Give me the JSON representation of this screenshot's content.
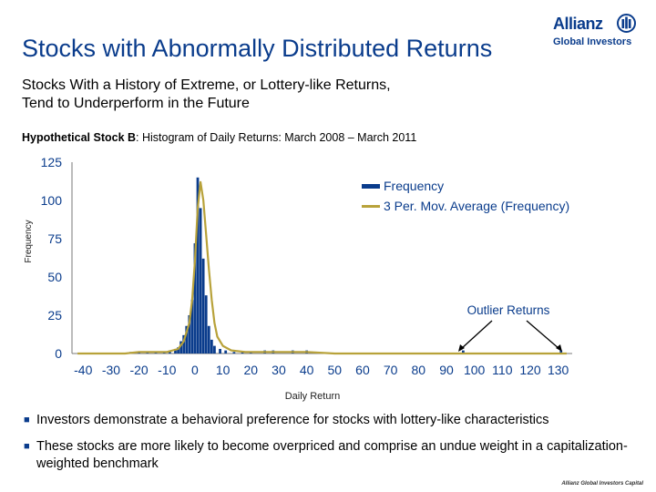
{
  "slide": {
    "title": "Stocks with Abnormally Distributed Returns",
    "subtitle_lines": [
      "Stocks With a History of Extreme, or Lottery-like Returns,",
      "Tend to Underperform in the Future"
    ],
    "chart_label_bold": "Hypothetical Stock B",
    "chart_label_rest": ": Histogram of Daily Returns: March 2008 – March 2011",
    "bullets": [
      "Investors demonstrate a behavioral preference for stocks with lottery-like characteristics",
      "These stocks are more likely to become overpriced and comprise an undue weight in a capitalization-weighted benchmark"
    ],
    "footer": "Allianz Global Investors Capital"
  },
  "logo": {
    "name": "Allianz",
    "sub": "Global Investors",
    "icon": "allianz-eagle-icon"
  },
  "colors": {
    "title": "#0a3c8c",
    "bars": "#0a3c8c",
    "line": "#b8a23a"
  },
  "chart_data": {
    "type": "bar",
    "title": "",
    "xlabel": "Daily Return",
    "ylabel": "Frequency",
    "xlim": [
      -44,
      135
    ],
    "ylim": [
      0,
      125
    ],
    "yticks": [
      0,
      25,
      50,
      75,
      100,
      125
    ],
    "xticks": [
      -40,
      -30,
      -20,
      -10,
      0,
      10,
      20,
      30,
      40,
      50,
      60,
      70,
      80,
      90,
      100,
      110,
      120,
      130
    ],
    "legend": [
      "Frequency",
      "3 Per. Mov. Average (Frequency)"
    ],
    "annotation": "Outlier Returns",
    "bars": [
      {
        "x": -23,
        "y": 1
      },
      {
        "x": -20,
        "y": 1
      },
      {
        "x": -17,
        "y": 1
      },
      {
        "x": -14,
        "y": 1
      },
      {
        "x": -11,
        "y": 1
      },
      {
        "x": -9,
        "y": 2
      },
      {
        "x": -7,
        "y": 3
      },
      {
        "x": -6,
        "y": 4
      },
      {
        "x": -5,
        "y": 8
      },
      {
        "x": -4,
        "y": 12
      },
      {
        "x": -3,
        "y": 18
      },
      {
        "x": -2,
        "y": 25
      },
      {
        "x": -1,
        "y": 35
      },
      {
        "x": 0,
        "y": 72
      },
      {
        "x": 1,
        "y": 115
      },
      {
        "x": 2,
        "y": 95
      },
      {
        "x": 3,
        "y": 62
      },
      {
        "x": 4,
        "y": 38
      },
      {
        "x": 5,
        "y": 18
      },
      {
        "x": 6,
        "y": 9
      },
      {
        "x": 7,
        "y": 5
      },
      {
        "x": 9,
        "y": 3
      },
      {
        "x": 11,
        "y": 2
      },
      {
        "x": 14,
        "y": 1
      },
      {
        "x": 17,
        "y": 1
      },
      {
        "x": 20,
        "y": 1
      },
      {
        "x": 25,
        "y": 2
      },
      {
        "x": 28,
        "y": 2
      },
      {
        "x": 35,
        "y": 2
      },
      {
        "x": 40,
        "y": 2
      },
      {
        "x": 96,
        "y": 2
      },
      {
        "x": 131,
        "y": 2
      }
    ],
    "moving_average": [
      {
        "x": -42,
        "y": 0
      },
      {
        "x": -25,
        "y": 0
      },
      {
        "x": -20,
        "y": 1
      },
      {
        "x": -10,
        "y": 1
      },
      {
        "x": -6,
        "y": 3
      },
      {
        "x": -4,
        "y": 8
      },
      {
        "x": -2,
        "y": 20
      },
      {
        "x": -1,
        "y": 35
      },
      {
        "x": 0,
        "y": 60
      },
      {
        "x": 1,
        "y": 95
      },
      {
        "x": 2,
        "y": 112
      },
      {
        "x": 3,
        "y": 100
      },
      {
        "x": 4,
        "y": 78
      },
      {
        "x": 5,
        "y": 55
      },
      {
        "x": 6,
        "y": 35
      },
      {
        "x": 7,
        "y": 20
      },
      {
        "x": 8,
        "y": 11
      },
      {
        "x": 10,
        "y": 5
      },
      {
        "x": 13,
        "y": 2
      },
      {
        "x": 18,
        "y": 1
      },
      {
        "x": 25,
        "y": 1
      },
      {
        "x": 40,
        "y": 1
      },
      {
        "x": 50,
        "y": 0
      },
      {
        "x": 133,
        "y": 0
      }
    ],
    "outliers": [
      96,
      131
    ]
  }
}
